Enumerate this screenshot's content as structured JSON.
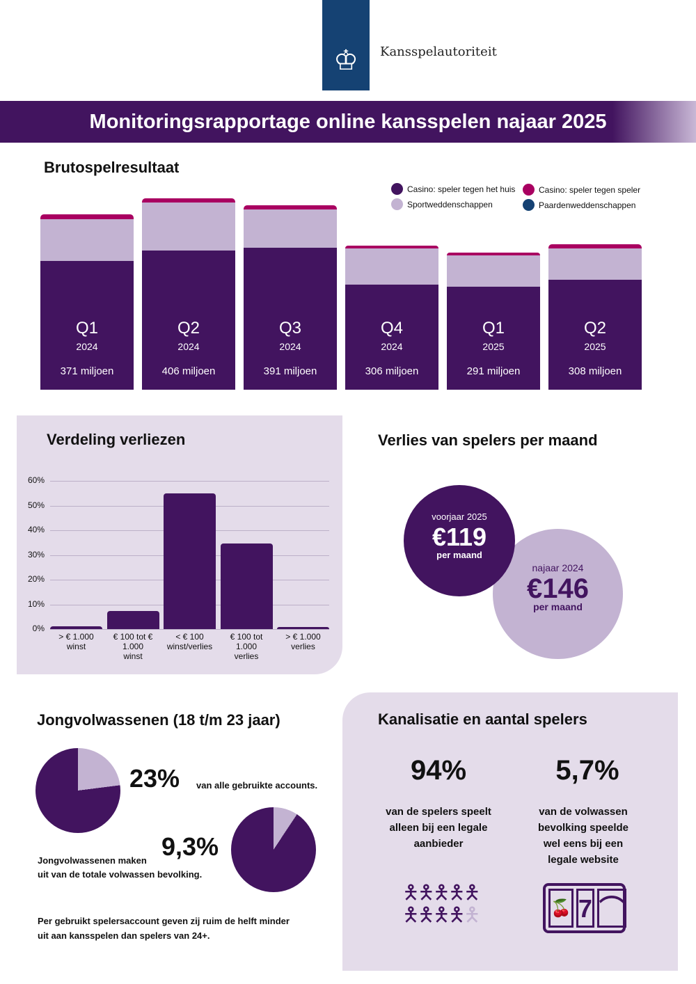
{
  "header": {
    "org": "Kansspelautoriteit",
    "title": "Monitoringsrapportage online kansspelen najaar 2025"
  },
  "colors": {
    "dark": "#42145f",
    "light": "#c3b3d2",
    "pink": "#a90061",
    "blue": "#154273"
  },
  "chart_data": [
    {
      "type": "bar",
      "stacked": true,
      "title": "Brutospelresultaat",
      "unit": "miljoen",
      "legend": [
        "Casino: speler tegen het huis",
        "Casino: speler tegen speler",
        "Sportweddenschappen",
        "Paardenweddenschappen"
      ],
      "legend_position": "top-right",
      "bars": [
        {
          "q": "Q1",
          "year": "2024",
          "label": "371 miljoen",
          "total": 371,
          "casino_huis": 273,
          "sport": 88,
          "casino_speler": 10
        },
        {
          "q": "Q2",
          "year": "2024",
          "label": "406 miljoen",
          "total": 406,
          "casino_huis": 295,
          "sport": 102,
          "casino_speler": 9
        },
        {
          "q": "Q3",
          "year": "2024",
          "label": "391 miljoen",
          "total": 391,
          "casino_huis": 301,
          "sport": 81,
          "casino_speler": 9
        },
        {
          "q": "Q4",
          "year": "2024",
          "label": "306 miljoen",
          "total": 306,
          "casino_huis": 222,
          "sport": 77,
          "casino_speler": 7
        },
        {
          "q": "Q1",
          "year": "2025",
          "label": "291 miljoen",
          "total": 291,
          "casino_huis": 219,
          "sport": 65,
          "casino_speler": 7
        },
        {
          "q": "Q2",
          "year": "2025",
          "label": "308 miljoen",
          "total": 308,
          "casino_huis": 233,
          "sport": 66,
          "casino_speler": 9
        }
      ]
    },
    {
      "type": "bar",
      "title": "Verdeling verliezen",
      "ylim": [
        0,
        60
      ],
      "yticks": [
        "0%",
        "10%",
        "20%",
        "30%",
        "40%",
        "50%",
        "60%"
      ],
      "categories": [
        [
          "> € 1.000",
          "winst"
        ],
        [
          "€ 100 tot € 1.000",
          "winst"
        ],
        [
          "< € 100",
          "winst/verlies"
        ],
        [
          "€ 100 tot 1.000",
          "verlies"
        ],
        [
          "> € 1.000",
          "verlies"
        ]
      ],
      "values": [
        1,
        7.3,
        55,
        34.6,
        0.5
      ]
    }
  ],
  "verlies": {
    "title": "Verlies van spelers per maand",
    "a": {
      "period": "voorjaar 2025",
      "amount": "€119",
      "unit": "per maand"
    },
    "b": {
      "period": "najaar 2024",
      "amount": "€146",
      "unit": "per maand"
    }
  },
  "jong": {
    "title": "Jongvolwassenen (18 t/m 23 jaar)",
    "pct1": "23%",
    "pct1_value": 23,
    "text1": "van alle gebruikte accounts.",
    "pct2": "9,3%",
    "pct2_value": 9.3,
    "text2a": "Jongvolwassenen maken",
    "text2b": "uit van de totale volwassen bevolking.",
    "note1": "Per gebruikt spelersaccount geven zij ruim de helft minder",
    "note2": "uit aan kansspelen dan spelers van 24+."
  },
  "kan": {
    "title": "Kanalisatie en aantal spelers",
    "pct1": "94%",
    "text1": [
      "van de spelers speelt",
      "alleen bij een legale",
      "aanbieder"
    ],
    "pct2": "5,7%",
    "text2": [
      "van de volwassen",
      "bevolking speelde",
      "wel eens bij een",
      "legale website"
    ],
    "slot_symbols": [
      "🍒",
      "7",
      "⌒"
    ]
  }
}
